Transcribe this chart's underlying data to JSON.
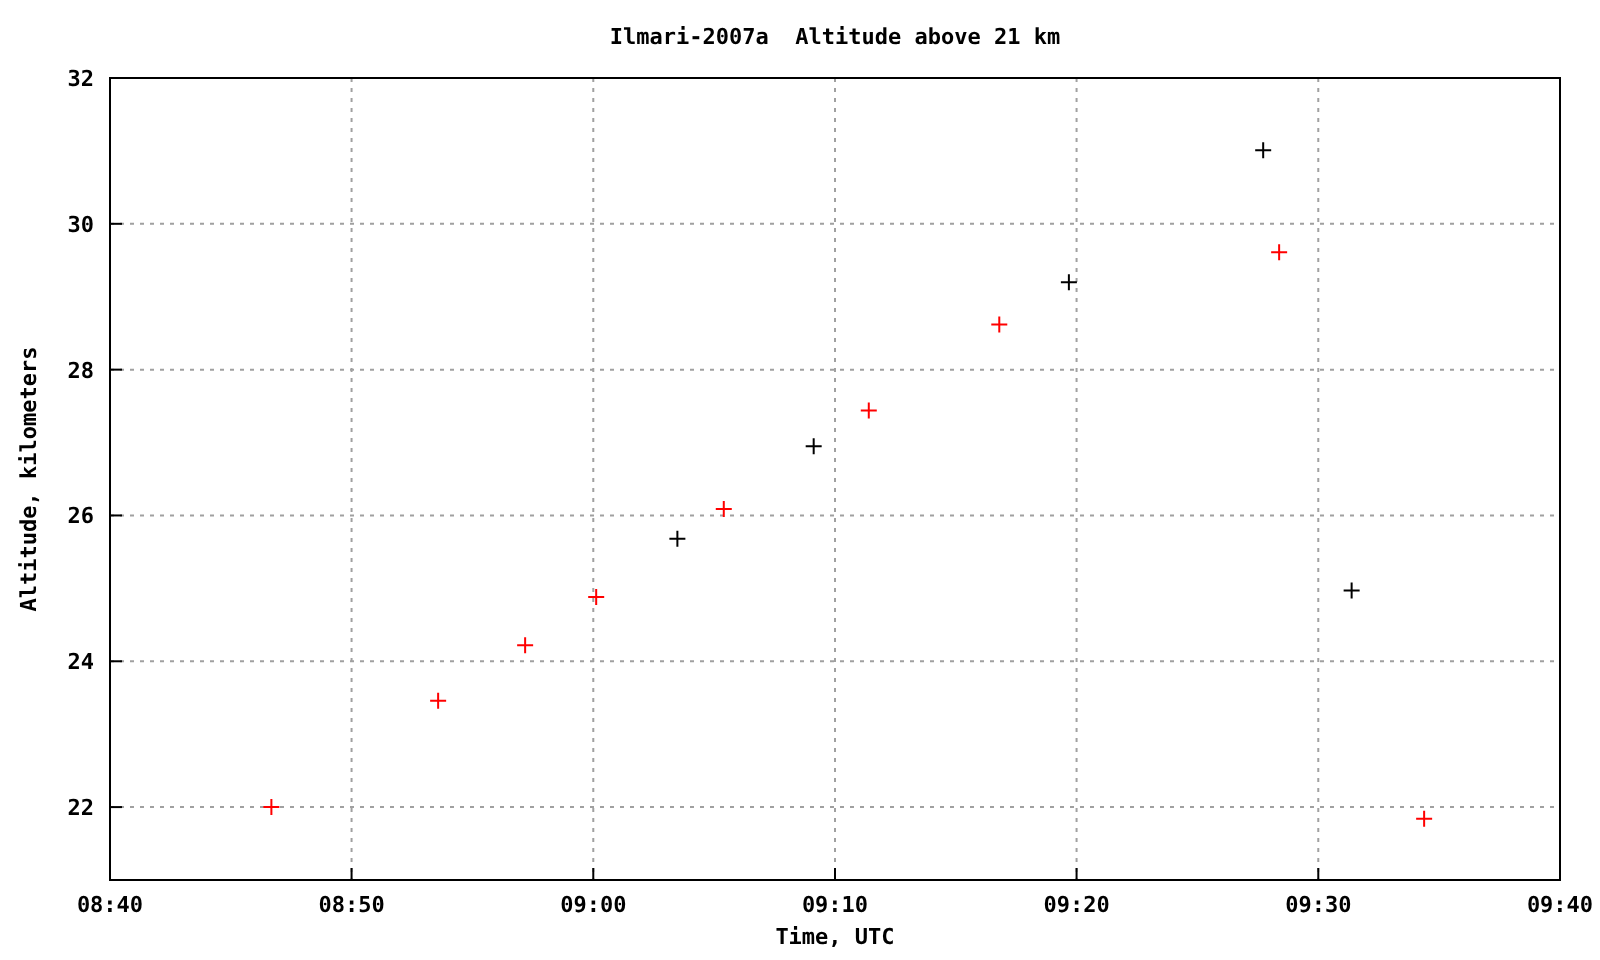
{
  "chart_data": {
    "type": "scatter",
    "title": "Ilmari-2007a  Altitude above 21 km",
    "xlabel": "Time, UTC",
    "ylabel": "Altitude, kilometers",
    "xlim": [
      8.6667,
      9.6667
    ],
    "xticks": [
      {
        "value": 8.6667,
        "label": "08:40"
      },
      {
        "value": 8.8333,
        "label": "08:50"
      },
      {
        "value": 9,
        "label": "09:00"
      },
      {
        "value": 9.1667,
        "label": "09:10"
      },
      {
        "value": 9.3333,
        "label": "09:20"
      },
      {
        "value": 9.5,
        "label": "09:30"
      },
      {
        "value": 9.6667,
        "label": "09:40"
      }
    ],
    "ylim": [
      21,
      32
    ],
    "yticks": [
      22,
      24,
      26,
      28,
      30,
      32
    ],
    "grid": true,
    "marker": "cross",
    "series": [
      {
        "color": "#ff0000",
        "x": [
          8.778,
          8.893,
          8.953,
          9.002,
          9.09,
          9.19,
          9.28,
          9.473,
          9.573
        ],
        "values": [
          22.0,
          23.46,
          24.22,
          24.88,
          26.09,
          27.44,
          28.62,
          29.61,
          21.84
        ]
      },
      {
        "color": "#000000",
        "x": [
          9.058,
          9.152,
          9.328,
          9.462,
          9.523
        ],
        "values": [
          25.68,
          26.95,
          29.2,
          31.01,
          24.97
        ]
      }
    ]
  }
}
